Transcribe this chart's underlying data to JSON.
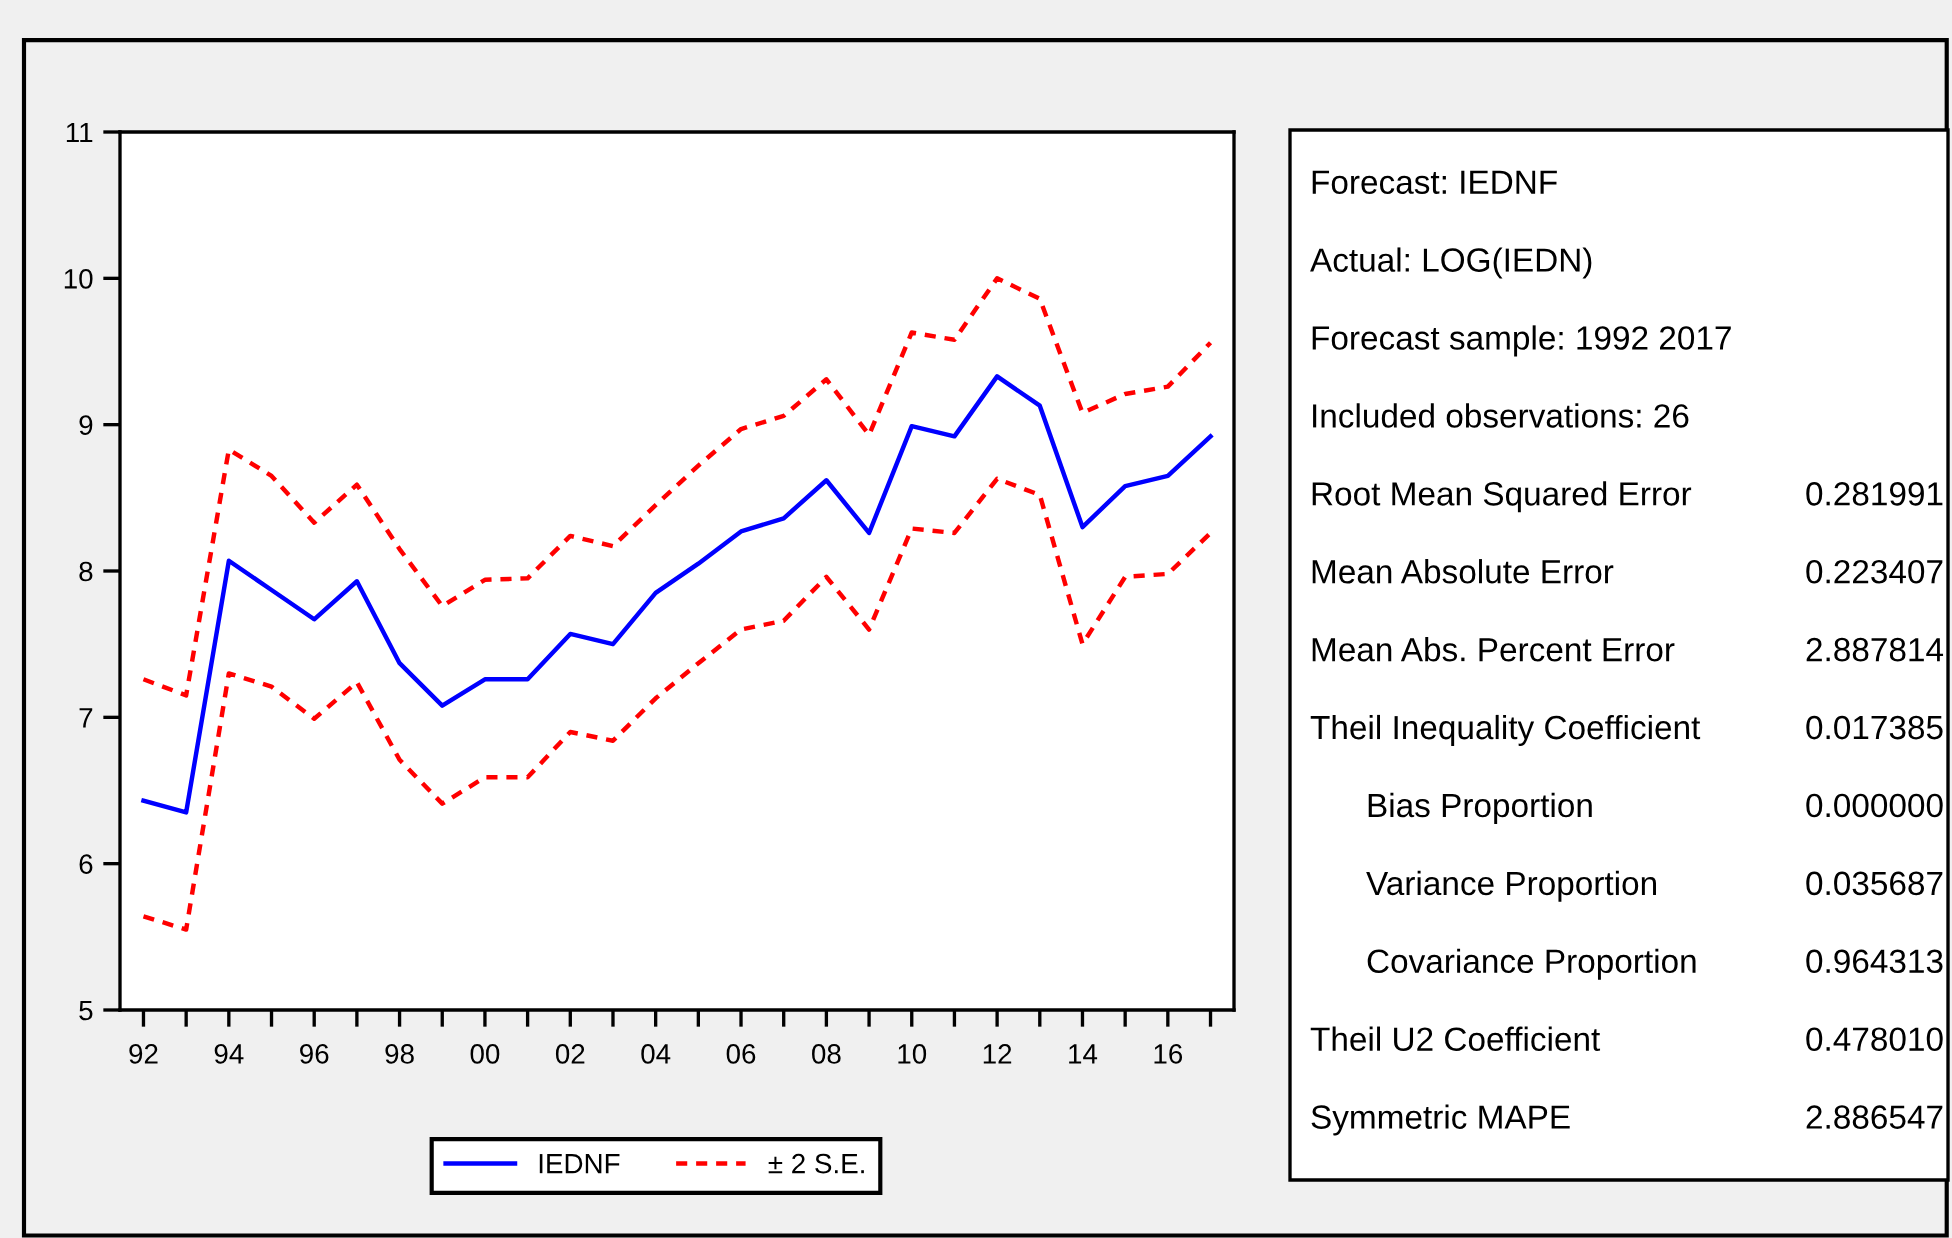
{
  "chart_data": {
    "type": "line",
    "x": [
      1992,
      1993,
      1994,
      1995,
      1996,
      1997,
      1998,
      1999,
      2000,
      2001,
      2002,
      2003,
      2004,
      2005,
      2006,
      2007,
      2008,
      2009,
      2010,
      2011,
      2012,
      2013,
      2014,
      2015,
      2016,
      2017
    ],
    "series": [
      {
        "name": "IEDNF",
        "color": "#0000ff",
        "line_style": "solid",
        "values": [
          6.43,
          6.35,
          8.07,
          7.87,
          7.67,
          7.93,
          7.37,
          7.08,
          7.26,
          7.26,
          7.57,
          7.5,
          7.85,
          8.05,
          8.27,
          8.36,
          8.62,
          8.26,
          8.99,
          8.92,
          9.33,
          9.13,
          8.3,
          8.58,
          8.65,
          8.92
        ]
      },
      {
        "name": "± 2 S.E.",
        "color": "#ff0000",
        "line_style": "dashed",
        "values": [
          7.26,
          7.15,
          8.83,
          8.65,
          8.33,
          8.59,
          8.15,
          7.76,
          7.94,
          7.95,
          8.24,
          8.17,
          8.45,
          8.72,
          8.97,
          9.06,
          9.31,
          8.93,
          9.63,
          9.58,
          10.0,
          9.86,
          9.08,
          9.21,
          9.26,
          9.56
        ]
      },
      {
        "color": "#ff0000",
        "line_style": "dashed",
        "values": [
          5.64,
          5.55,
          7.3,
          7.21,
          6.99,
          7.24,
          6.71,
          6.41,
          6.59,
          6.59,
          6.9,
          6.84,
          7.13,
          7.37,
          7.6,
          7.66,
          7.96,
          7.6,
          8.29,
          8.26,
          8.63,
          8.52,
          7.5,
          7.96,
          7.98,
          8.26
        ]
      }
    ],
    "xlim": [
      1991.45,
      2017.55
    ],
    "xticks": [
      {
        "value": 1992,
        "label": "92"
      },
      {
        "value": 1993,
        "label": null
      },
      {
        "value": 1994,
        "label": "94"
      },
      {
        "value": 1995,
        "label": null
      },
      {
        "value": 1996,
        "label": "96"
      },
      {
        "value": 1997,
        "label": null
      },
      {
        "value": 1998,
        "label": "98"
      },
      {
        "value": 1999,
        "label": null
      },
      {
        "value": 2000,
        "label": "00"
      },
      {
        "value": 2001,
        "label": null
      },
      {
        "value": 2002,
        "label": "02"
      },
      {
        "value": 2003,
        "label": null
      },
      {
        "value": 2004,
        "label": "04"
      },
      {
        "value": 2005,
        "label": null
      },
      {
        "value": 2006,
        "label": "06"
      },
      {
        "value": 2007,
        "label": null
      },
      {
        "value": 2008,
        "label": "08"
      },
      {
        "value": 2009,
        "label": null
      },
      {
        "value": 2010,
        "label": "10"
      },
      {
        "value": 2011,
        "label": null
      },
      {
        "value": 2012,
        "label": "12"
      },
      {
        "value": 2013,
        "label": null
      },
      {
        "value": 2014,
        "label": "14"
      },
      {
        "value": 2015,
        "label": null
      },
      {
        "value": 2016,
        "label": "16"
      },
      {
        "value": 2017,
        "label": null
      }
    ],
    "ylim": [
      5,
      11
    ],
    "yticks": [
      5,
      6,
      7,
      8,
      9,
      10,
      11
    ],
    "grid": false,
    "legend": "bottom",
    "marker": "none",
    "annotations": [
      "Forecast: IEDNF",
      "Actual: LOG(IEDN)",
      "Forecast sample: 1992 2017",
      "Included observations: 26",
      "Root Mean Squared Error 0.281991",
      "Mean Absolute Error 0.223407",
      "Mean Abs. Percent Error 2.887814",
      "Theil Inequality Coefficient 0.017385",
      "Bias Proportion 0.000000",
      "Variance Proportion 0.035687",
      "Covariance Proportion 0.964313",
      "Theil U2 Coefficient 0.478010",
      "Symmetric MAPE 2.886547"
    ]
  }
}
